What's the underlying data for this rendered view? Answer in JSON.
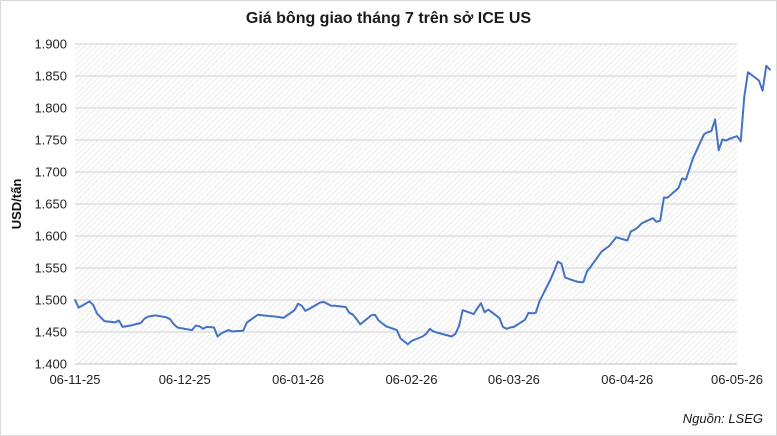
{
  "chart_data": {
    "type": "line",
    "title": "Giá bông giao tháng 7 trên sở ICE US",
    "xlabel": "",
    "ylabel": "USD/tấn",
    "source": "Nguồn: LSEG",
    "ylim": [
      1400,
      1900
    ],
    "yticks": [
      "1.400",
      "1.450",
      "1.500",
      "1.550",
      "1.600",
      "1.650",
      "1.700",
      "1.750",
      "1.800",
      "1.850",
      "1.900"
    ],
    "xlim": [
      "2025-11-06",
      "2026-05-06"
    ],
    "xticks": [
      {
        "date": "2025-11-06",
        "label": "06-11-25"
      },
      {
        "date": "2025-12-06",
        "label": "06-12-25"
      },
      {
        "date": "2026-01-06",
        "label": "06-01-26"
      },
      {
        "date": "2026-02-06",
        "label": "06-02-26"
      },
      {
        "date": "2026-03-06",
        "label": "06-03-26"
      },
      {
        "date": "2026-04-06",
        "label": "06-04-26"
      },
      {
        "date": "2026-05-06",
        "label": "06-05-26"
      }
    ],
    "grid": "horizontal",
    "line_color": "#4472C4",
    "series": [
      {
        "name": "",
        "points": [
          [
            "2025-11-06",
            1500
          ],
          [
            "2025-11-07",
            1488
          ],
          [
            "2025-11-10",
            1498
          ],
          [
            "2025-11-11",
            1492
          ],
          [
            "2025-11-12",
            1479
          ],
          [
            "2025-11-14",
            1467
          ],
          [
            "2025-11-17",
            1465
          ],
          [
            "2025-11-18",
            1468
          ],
          [
            "2025-11-19",
            1458
          ],
          [
            "2025-11-21",
            1460
          ],
          [
            "2025-11-24",
            1464
          ],
          [
            "2025-11-25",
            1471
          ],
          [
            "2025-11-26",
            1474
          ],
          [
            "2025-11-28",
            1476
          ],
          [
            "2025-12-01",
            1473
          ],
          [
            "2025-12-02",
            1470
          ],
          [
            "2025-12-03",
            1462
          ],
          [
            "2025-12-04",
            1457
          ],
          [
            "2025-12-05",
            1456
          ],
          [
            "2025-12-08",
            1453
          ],
          [
            "2025-12-09",
            1460
          ],
          [
            "2025-12-10",
            1459
          ],
          [
            "2025-12-11",
            1455
          ],
          [
            "2025-12-12",
            1458
          ],
          [
            "2025-12-14",
            1457
          ],
          [
            "2025-12-15",
            1443
          ],
          [
            "2025-12-16",
            1448
          ],
          [
            "2025-12-18",
            1453
          ],
          [
            "2025-12-19",
            1451
          ],
          [
            "2025-12-22",
            1452
          ],
          [
            "2025-12-23",
            1465
          ],
          [
            "2025-12-26",
            1477
          ],
          [
            "2025-12-29",
            1475
          ],
          [
            "2025-12-31",
            1474
          ],
          [
            "2026-01-02",
            1472
          ],
          [
            "2026-01-05",
            1484
          ],
          [
            "2026-01-06",
            1494
          ],
          [
            "2026-01-07",
            1491
          ],
          [
            "2026-01-08",
            1483
          ],
          [
            "2026-01-09",
            1486
          ],
          [
            "2026-01-12",
            1496
          ],
          [
            "2026-01-13",
            1497
          ],
          [
            "2026-01-14",
            1494
          ],
          [
            "2026-01-15",
            1491
          ],
          [
            "2026-01-16",
            1491
          ],
          [
            "2026-01-19",
            1489
          ],
          [
            "2026-01-20",
            1480
          ],
          [
            "2026-01-21",
            1477
          ],
          [
            "2026-01-22",
            1470
          ],
          [
            "2026-01-23",
            1462
          ],
          [
            "2026-01-26",
            1476
          ],
          [
            "2026-01-27",
            1477
          ],
          [
            "2026-01-28",
            1468
          ],
          [
            "2026-01-30",
            1459
          ],
          [
            "2026-02-02",
            1453
          ],
          [
            "2026-02-03",
            1440
          ],
          [
            "2026-02-05",
            1431
          ],
          [
            "2026-02-06",
            1436
          ],
          [
            "2026-02-09",
            1443
          ],
          [
            "2026-02-10",
            1447
          ],
          [
            "2026-02-11",
            1455
          ],
          [
            "2026-02-12",
            1451
          ],
          [
            "2026-02-13",
            1449
          ],
          [
            "2026-02-17",
            1443
          ],
          [
            "2026-02-18",
            1447
          ],
          [
            "2026-02-19",
            1459
          ],
          [
            "2026-02-20",
            1484
          ],
          [
            "2026-02-23",
            1478
          ],
          [
            "2026-02-24",
            1487
          ],
          [
            "2026-02-25",
            1495
          ],
          [
            "2026-02-26",
            1481
          ],
          [
            "2026-02-27",
            1485
          ],
          [
            "2026-03-02",
            1472
          ],
          [
            "2026-03-03",
            1458
          ],
          [
            "2026-03-04",
            1455
          ],
          [
            "2026-03-05",
            1457
          ],
          [
            "2026-03-06",
            1458
          ],
          [
            "2026-03-09",
            1469
          ],
          [
            "2026-03-10",
            1480
          ],
          [
            "2026-03-11",
            1479
          ],
          [
            "2026-03-12",
            1480
          ],
          [
            "2026-03-13",
            1498
          ],
          [
            "2026-03-16",
            1532
          ],
          [
            "2026-03-17",
            1545
          ],
          [
            "2026-03-18",
            1560
          ],
          [
            "2026-03-19",
            1557
          ],
          [
            "2026-03-20",
            1535
          ],
          [
            "2026-03-23",
            1529
          ],
          [
            "2026-03-24",
            1528
          ],
          [
            "2026-03-25",
            1528
          ],
          [
            "2026-03-26",
            1545
          ],
          [
            "2026-03-27",
            1552
          ],
          [
            "2026-03-30",
            1576
          ],
          [
            "2026-03-31",
            1580
          ],
          [
            "2026-04-01",
            1584
          ],
          [
            "2026-04-02",
            1591
          ],
          [
            "2026-04-03",
            1598
          ],
          [
            "2026-04-06",
            1593
          ],
          [
            "2026-04-07",
            1607
          ],
          [
            "2026-04-08",
            1610
          ],
          [
            "2026-04-09",
            1614
          ],
          [
            "2026-04-10",
            1620
          ],
          [
            "2026-04-13",
            1628
          ],
          [
            "2026-04-14",
            1622
          ],
          [
            "2026-04-15",
            1624
          ],
          [
            "2026-04-16",
            1660
          ],
          [
            "2026-04-17",
            1660
          ],
          [
            "2026-04-20",
            1675
          ],
          [
            "2026-04-21",
            1690
          ],
          [
            "2026-04-22",
            1688
          ],
          [
            "2026-04-23",
            1705
          ],
          [
            "2026-04-24",
            1722
          ],
          [
            "2026-04-27",
            1759
          ],
          [
            "2026-04-28",
            1762
          ],
          [
            "2026-04-29",
            1764
          ],
          [
            "2026-04-30",
            1782
          ],
          [
            "2026-05-01",
            1734
          ],
          [
            "2026-05-02",
            1751
          ],
          [
            "2026-05-03",
            1749
          ],
          [
            "2026-05-04",
            1752
          ],
          [
            "2026-05-05",
            1754
          ],
          [
            "2026-05-06",
            1756
          ],
          [
            "2026-05-07",
            1748
          ],
          [
            "2026-05-08",
            1818
          ],
          [
            "2026-05-09",
            1856
          ],
          [
            "2026-05-12",
            1843
          ],
          [
            "2026-05-13",
            1827
          ],
          [
            "2026-05-14",
            1866
          ],
          [
            "2026-05-15",
            1860
          ]
        ]
      }
    ]
  }
}
